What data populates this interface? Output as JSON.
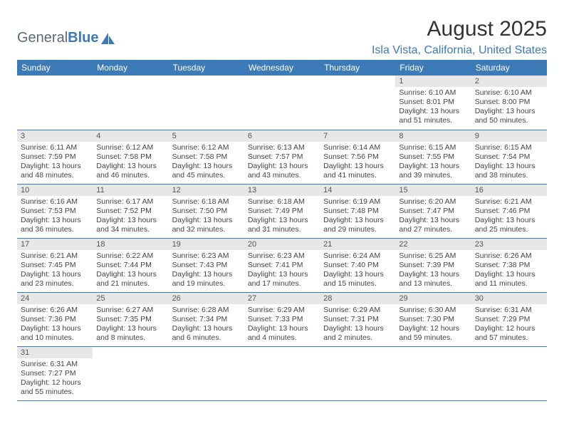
{
  "logo": {
    "text1": "General",
    "text2": "Blue"
  },
  "title": "August 2025",
  "location": "Isla Vista, California, United States",
  "colors": {
    "header_bg": "#3d7ab8",
    "header_text": "#ffffff",
    "daynum_bg": "#e7e7e7",
    "border": "#3d7ab8",
    "logo_gray": "#5a6a78",
    "logo_blue": "#3d7ab8",
    "body_text": "#444444"
  },
  "dayNames": [
    "Sunday",
    "Monday",
    "Tuesday",
    "Wednesday",
    "Thursday",
    "Friday",
    "Saturday"
  ],
  "weeks": [
    [
      null,
      null,
      null,
      null,
      null,
      {
        "n": "1",
        "sr": "6:10 AM",
        "ss": "8:01 PM",
        "dh": "13",
        "dm": "51"
      },
      {
        "n": "2",
        "sr": "6:10 AM",
        "ss": "8:00 PM",
        "dh": "13",
        "dm": "50"
      }
    ],
    [
      {
        "n": "3",
        "sr": "6:11 AM",
        "ss": "7:59 PM",
        "dh": "13",
        "dm": "48"
      },
      {
        "n": "4",
        "sr": "6:12 AM",
        "ss": "7:58 PM",
        "dh": "13",
        "dm": "46"
      },
      {
        "n": "5",
        "sr": "6:12 AM",
        "ss": "7:58 PM",
        "dh": "13",
        "dm": "45"
      },
      {
        "n": "6",
        "sr": "6:13 AM",
        "ss": "7:57 PM",
        "dh": "13",
        "dm": "43"
      },
      {
        "n": "7",
        "sr": "6:14 AM",
        "ss": "7:56 PM",
        "dh": "13",
        "dm": "41"
      },
      {
        "n": "8",
        "sr": "6:15 AM",
        "ss": "7:55 PM",
        "dh": "13",
        "dm": "39"
      },
      {
        "n": "9",
        "sr": "6:15 AM",
        "ss": "7:54 PM",
        "dh": "13",
        "dm": "38"
      }
    ],
    [
      {
        "n": "10",
        "sr": "6:16 AM",
        "ss": "7:53 PM",
        "dh": "13",
        "dm": "36"
      },
      {
        "n": "11",
        "sr": "6:17 AM",
        "ss": "7:52 PM",
        "dh": "13",
        "dm": "34"
      },
      {
        "n": "12",
        "sr": "6:18 AM",
        "ss": "7:50 PM",
        "dh": "13",
        "dm": "32"
      },
      {
        "n": "13",
        "sr": "6:18 AM",
        "ss": "7:49 PM",
        "dh": "13",
        "dm": "31"
      },
      {
        "n": "14",
        "sr": "6:19 AM",
        "ss": "7:48 PM",
        "dh": "13",
        "dm": "29"
      },
      {
        "n": "15",
        "sr": "6:20 AM",
        "ss": "7:47 PM",
        "dh": "13",
        "dm": "27"
      },
      {
        "n": "16",
        "sr": "6:21 AM",
        "ss": "7:46 PM",
        "dh": "13",
        "dm": "25"
      }
    ],
    [
      {
        "n": "17",
        "sr": "6:21 AM",
        "ss": "7:45 PM",
        "dh": "13",
        "dm": "23"
      },
      {
        "n": "18",
        "sr": "6:22 AM",
        "ss": "7:44 PM",
        "dh": "13",
        "dm": "21"
      },
      {
        "n": "19",
        "sr": "6:23 AM",
        "ss": "7:43 PM",
        "dh": "13",
        "dm": "19"
      },
      {
        "n": "20",
        "sr": "6:23 AM",
        "ss": "7:41 PM",
        "dh": "13",
        "dm": "17"
      },
      {
        "n": "21",
        "sr": "6:24 AM",
        "ss": "7:40 PM",
        "dh": "13",
        "dm": "15"
      },
      {
        "n": "22",
        "sr": "6:25 AM",
        "ss": "7:39 PM",
        "dh": "13",
        "dm": "13"
      },
      {
        "n": "23",
        "sr": "6:26 AM",
        "ss": "7:38 PM",
        "dh": "13",
        "dm": "11"
      }
    ],
    [
      {
        "n": "24",
        "sr": "6:26 AM",
        "ss": "7:36 PM",
        "dh": "13",
        "dm": "10"
      },
      {
        "n": "25",
        "sr": "6:27 AM",
        "ss": "7:35 PM",
        "dh": "13",
        "dm": "8"
      },
      {
        "n": "26",
        "sr": "6:28 AM",
        "ss": "7:34 PM",
        "dh": "13",
        "dm": "6"
      },
      {
        "n": "27",
        "sr": "6:29 AM",
        "ss": "7:33 PM",
        "dh": "13",
        "dm": "4"
      },
      {
        "n": "28",
        "sr": "6:29 AM",
        "ss": "7:31 PM",
        "dh": "13",
        "dm": "2"
      },
      {
        "n": "29",
        "sr": "6:30 AM",
        "ss": "7:30 PM",
        "dh": "12",
        "dm": "59"
      },
      {
        "n": "30",
        "sr": "6:31 AM",
        "ss": "7:29 PM",
        "dh": "12",
        "dm": "57"
      }
    ],
    [
      {
        "n": "31",
        "sr": "6:31 AM",
        "ss": "7:27 PM",
        "dh": "12",
        "dm": "55"
      },
      null,
      null,
      null,
      null,
      null,
      null
    ]
  ]
}
